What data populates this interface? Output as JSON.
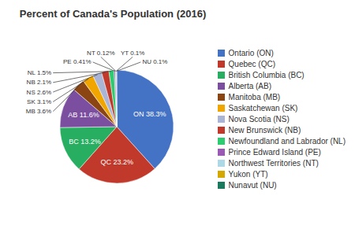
{
  "chart_data": {
    "type": "pie",
    "title": "Percent of Canada's Population (2016)",
    "categories": [
      "Ontario (ON)",
      "Quebec (QC)",
      "British Columbia (BC)",
      "Alberta (AB)",
      "Manitoba (MB)",
      "Saskatchewan (SK)",
      "Nova Scotia (NS)",
      "New Brunswick (NB)",
      "Newfoundland and Labrador (NL)",
      "Prince Edward Island (PE)",
      "Northwest Territories (NT)",
      "Yukon (YT)",
      "Nunavut (NU)"
    ],
    "values": [
      38.3,
      23.2,
      13.2,
      11.6,
      3.6,
      3.1,
      2.6,
      2.1,
      1.5,
      0.41,
      0.12,
      0.1,
      0.1
    ],
    "value_labels": [
      "ON 38.3%",
      "QC 23.2%",
      "BC 13.2%",
      "AB 11.6%",
      "MB 3.6%",
      "SK 3.1%",
      "NS 2.6%",
      "NB 2.1%",
      "NL 1.5%",
      "PE 0.41%",
      "NT 0.12%",
      "YT 0.1%",
      "NU 0.1%"
    ],
    "colors": [
      "#4472c4",
      "#c0392b",
      "#27ae60",
      "#7b4ea0",
      "#8b4513",
      "#f0a500",
      "#aab4d4",
      "#c0392b",
      "#2ecc71",
      "#9b59b6",
      "#add8e6",
      "#d4a800",
      "#1a7a5e"
    ],
    "data_labels": true,
    "legend": "right"
  }
}
